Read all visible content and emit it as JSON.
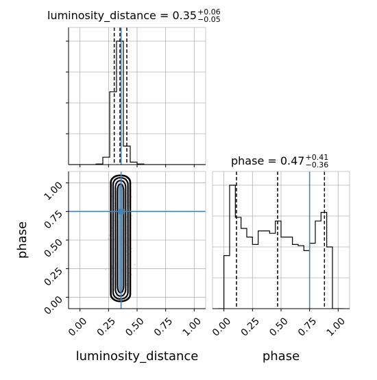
{
  "chart_data": {
    "type": "corner",
    "colors": {
      "truth": "#4682b4",
      "hist": "#000000",
      "grid": "#b0b0b0",
      "scatter": "#555555",
      "density_fill": "#708fa8"
    },
    "parameters": [
      "luminosity_distance",
      "phase"
    ],
    "axis_labels": {
      "x_bottom_left": "luminosity_distance",
      "x_bottom_right": "phase",
      "y_left": "phase"
    },
    "titles": [
      {
        "param": "luminosity_distance",
        "text": "luminosity_distance = 0.35",
        "plus": "+0.06",
        "minus": "−0.05"
      },
      {
        "param": "phase",
        "text": "phase = 0.47",
        "plus": "+0.41",
        "minus": "−0.36"
      }
    ],
    "xlim": [
      -0.1,
      1.1
    ],
    "ylim": [
      -0.1,
      1.1
    ],
    "ticks": [
      0.0,
      0.25,
      0.5,
      0.75,
      1.0
    ],
    "tick_labels": [
      "0.00",
      "0.25",
      "0.50",
      "0.75",
      "1.00"
    ],
    "truths": {
      "luminosity_distance": 0.36,
      "phase": 0.75
    },
    "quantiles": {
      "luminosity_distance": [
        0.3,
        0.35,
        0.41
      ],
      "phase": [
        0.11,
        0.47,
        0.88
      ]
    },
    "hist_luminosity_distance": {
      "bin_edges": [
        -0.1,
        -0.04,
        0.02,
        0.08,
        0.14,
        0.2,
        0.26,
        0.32,
        0.38,
        0.44,
        0.5,
        0.56,
        0.62,
        0.68,
        0.74,
        0.8,
        0.86,
        0.92,
        0.98,
        1.04,
        1.1
      ],
      "counts": [
        0,
        0,
        0,
        0,
        0.005,
        0.06,
        0.59,
        1.0,
        0.15,
        0.02,
        0.005,
        0,
        0,
        0,
        0,
        0,
        0,
        0,
        0,
        0
      ]
    },
    "hist_phase": {
      "bin_edges": [
        -0.05,
        0.0,
        0.05,
        0.1,
        0.15,
        0.2,
        0.25,
        0.3,
        0.35,
        0.4,
        0.45,
        0.5,
        0.55,
        0.6,
        0.65,
        0.7,
        0.75,
        0.8,
        0.85,
        0.9,
        0.95,
        1.0,
        1.05
      ],
      "counts": [
        0,
        0.43,
        1.0,
        0.74,
        0.65,
        0.58,
        0.52,
        0.63,
        0.63,
        0.61,
        0.71,
        0.58,
        0.58,
        0.52,
        0.51,
        0.47,
        0.53,
        0.71,
        0.78,
        0.5,
        0.0,
        0
      ]
    }
  }
}
